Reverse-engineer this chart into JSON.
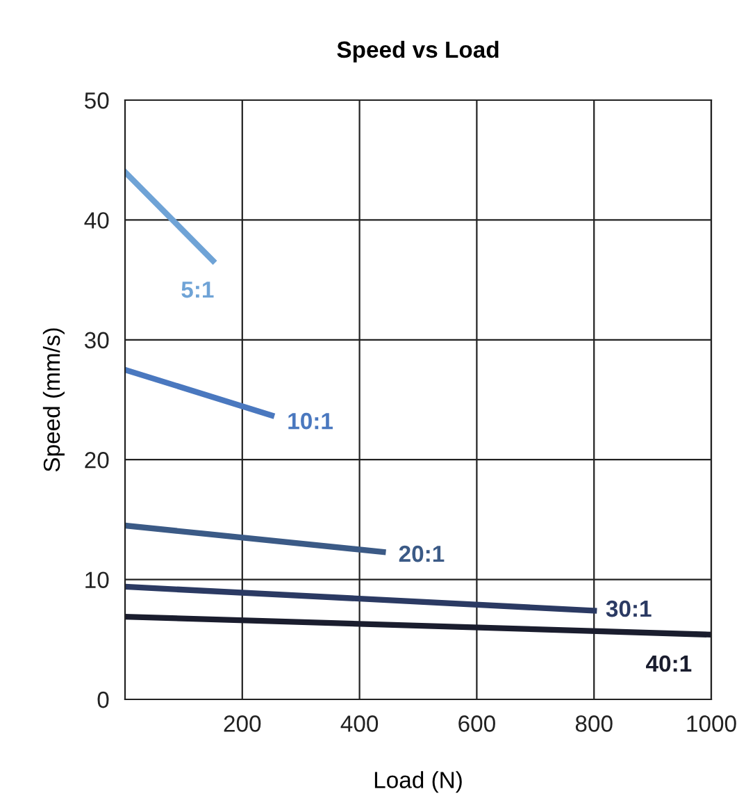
{
  "chart_data": {
    "type": "line",
    "title": "Speed vs Load",
    "xlabel": "Load (N)",
    "ylabel": "Speed (mm/s)",
    "xlim": [
      0,
      1000
    ],
    "xticks": [
      200,
      400,
      600,
      800,
      1000
    ],
    "ylim": [
      0,
      50
    ],
    "yticks": [
      0,
      10,
      20,
      30,
      40,
      50
    ],
    "grid": true,
    "legend": false,
    "series": [
      {
        "name": "5:1",
        "color": "#6fa3d6",
        "x": [
          0,
          150
        ],
        "values": [
          44,
          36.6
        ]
      },
      {
        "name": "10:1",
        "color": "#4a78bf",
        "x": [
          0,
          250
        ],
        "values": [
          27.5,
          23.7
        ]
      },
      {
        "name": "20:1",
        "color": "#3b5a86",
        "x": [
          0,
          440
        ],
        "values": [
          14.5,
          12.3
        ]
      },
      {
        "name": "30:1",
        "color": "#2b3a63",
        "x": [
          0,
          800
        ],
        "values": [
          9.4,
          7.4
        ]
      },
      {
        "name": "40:1",
        "color": "#1a1d2e",
        "x": [
          0,
          1000
        ],
        "values": [
          6.9,
          5.4
        ]
      }
    ]
  }
}
